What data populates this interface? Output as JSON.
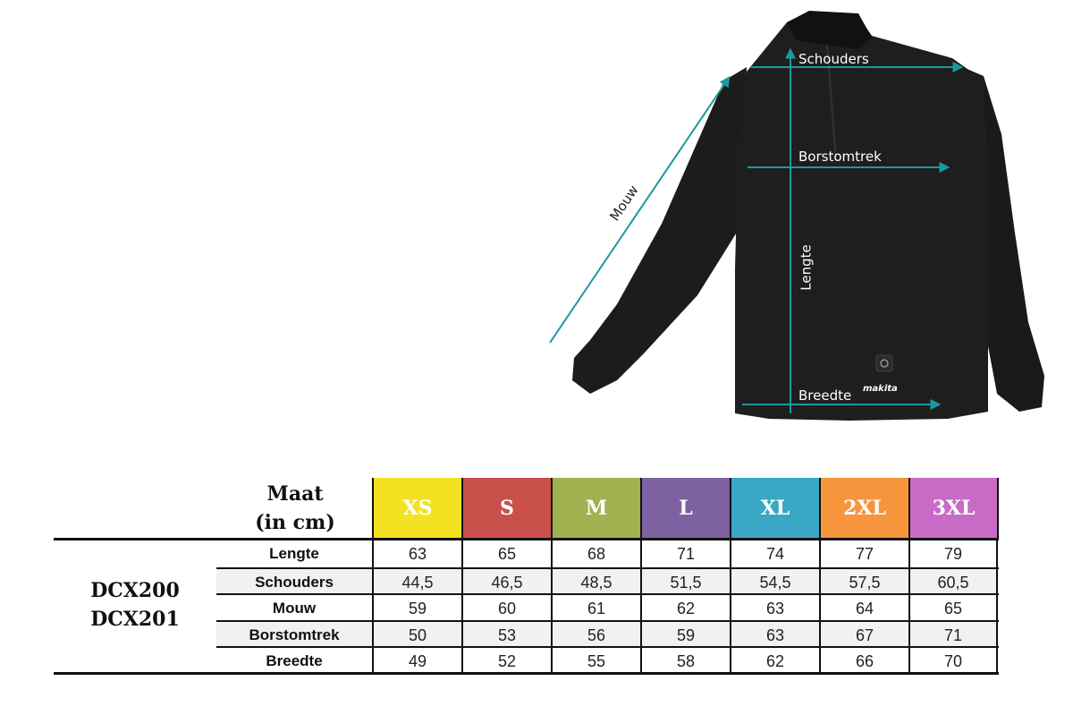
{
  "diagram": {
    "labels": {
      "shoulders": "Schouders",
      "chest": "Borstomtrek",
      "sleeve": "Mouw",
      "length": "Lengte",
      "width": "Breedte"
    },
    "brand_logo": "makita",
    "arrow_color": "#1a9aa0",
    "garment_color": "#1c1c1c"
  },
  "table": {
    "header_label_line1": "Maat",
    "header_label_line2": "(in cm)",
    "models": [
      "DCX200",
      "DCX201"
    ],
    "sizes": [
      {
        "label": "XS",
        "color": "#f2e222"
      },
      {
        "label": "S",
        "color": "#c9504b"
      },
      {
        "label": "M",
        "color": "#9fb24f"
      },
      {
        "label": "L",
        "color": "#7d61a1"
      },
      {
        "label": "XL",
        "color": "#3aa8c4"
      },
      {
        "label": "2XL",
        "color": "#f7953c"
      },
      {
        "label": "3XL",
        "color": "#c86bc6"
      }
    ],
    "rows": [
      {
        "name": "Lengte",
        "values": [
          "63",
          "65",
          "68",
          "71",
          "74",
          "77",
          "79"
        ]
      },
      {
        "name": "Schouders",
        "values": [
          "44,5",
          "46,5",
          "48,5",
          "51,5",
          "54,5",
          "57,5",
          "60,5"
        ]
      },
      {
        "name": "Mouw",
        "values": [
          "59",
          "60",
          "61",
          "62",
          "63",
          "64",
          "65"
        ]
      },
      {
        "name": "Borstomtrek",
        "values": [
          "50",
          "53",
          "56",
          "59",
          "63",
          "67",
          "71"
        ]
      },
      {
        "name": "Breedte",
        "values": [
          "49",
          "52",
          "55",
          "58",
          "62",
          "66",
          "70"
        ]
      }
    ]
  }
}
